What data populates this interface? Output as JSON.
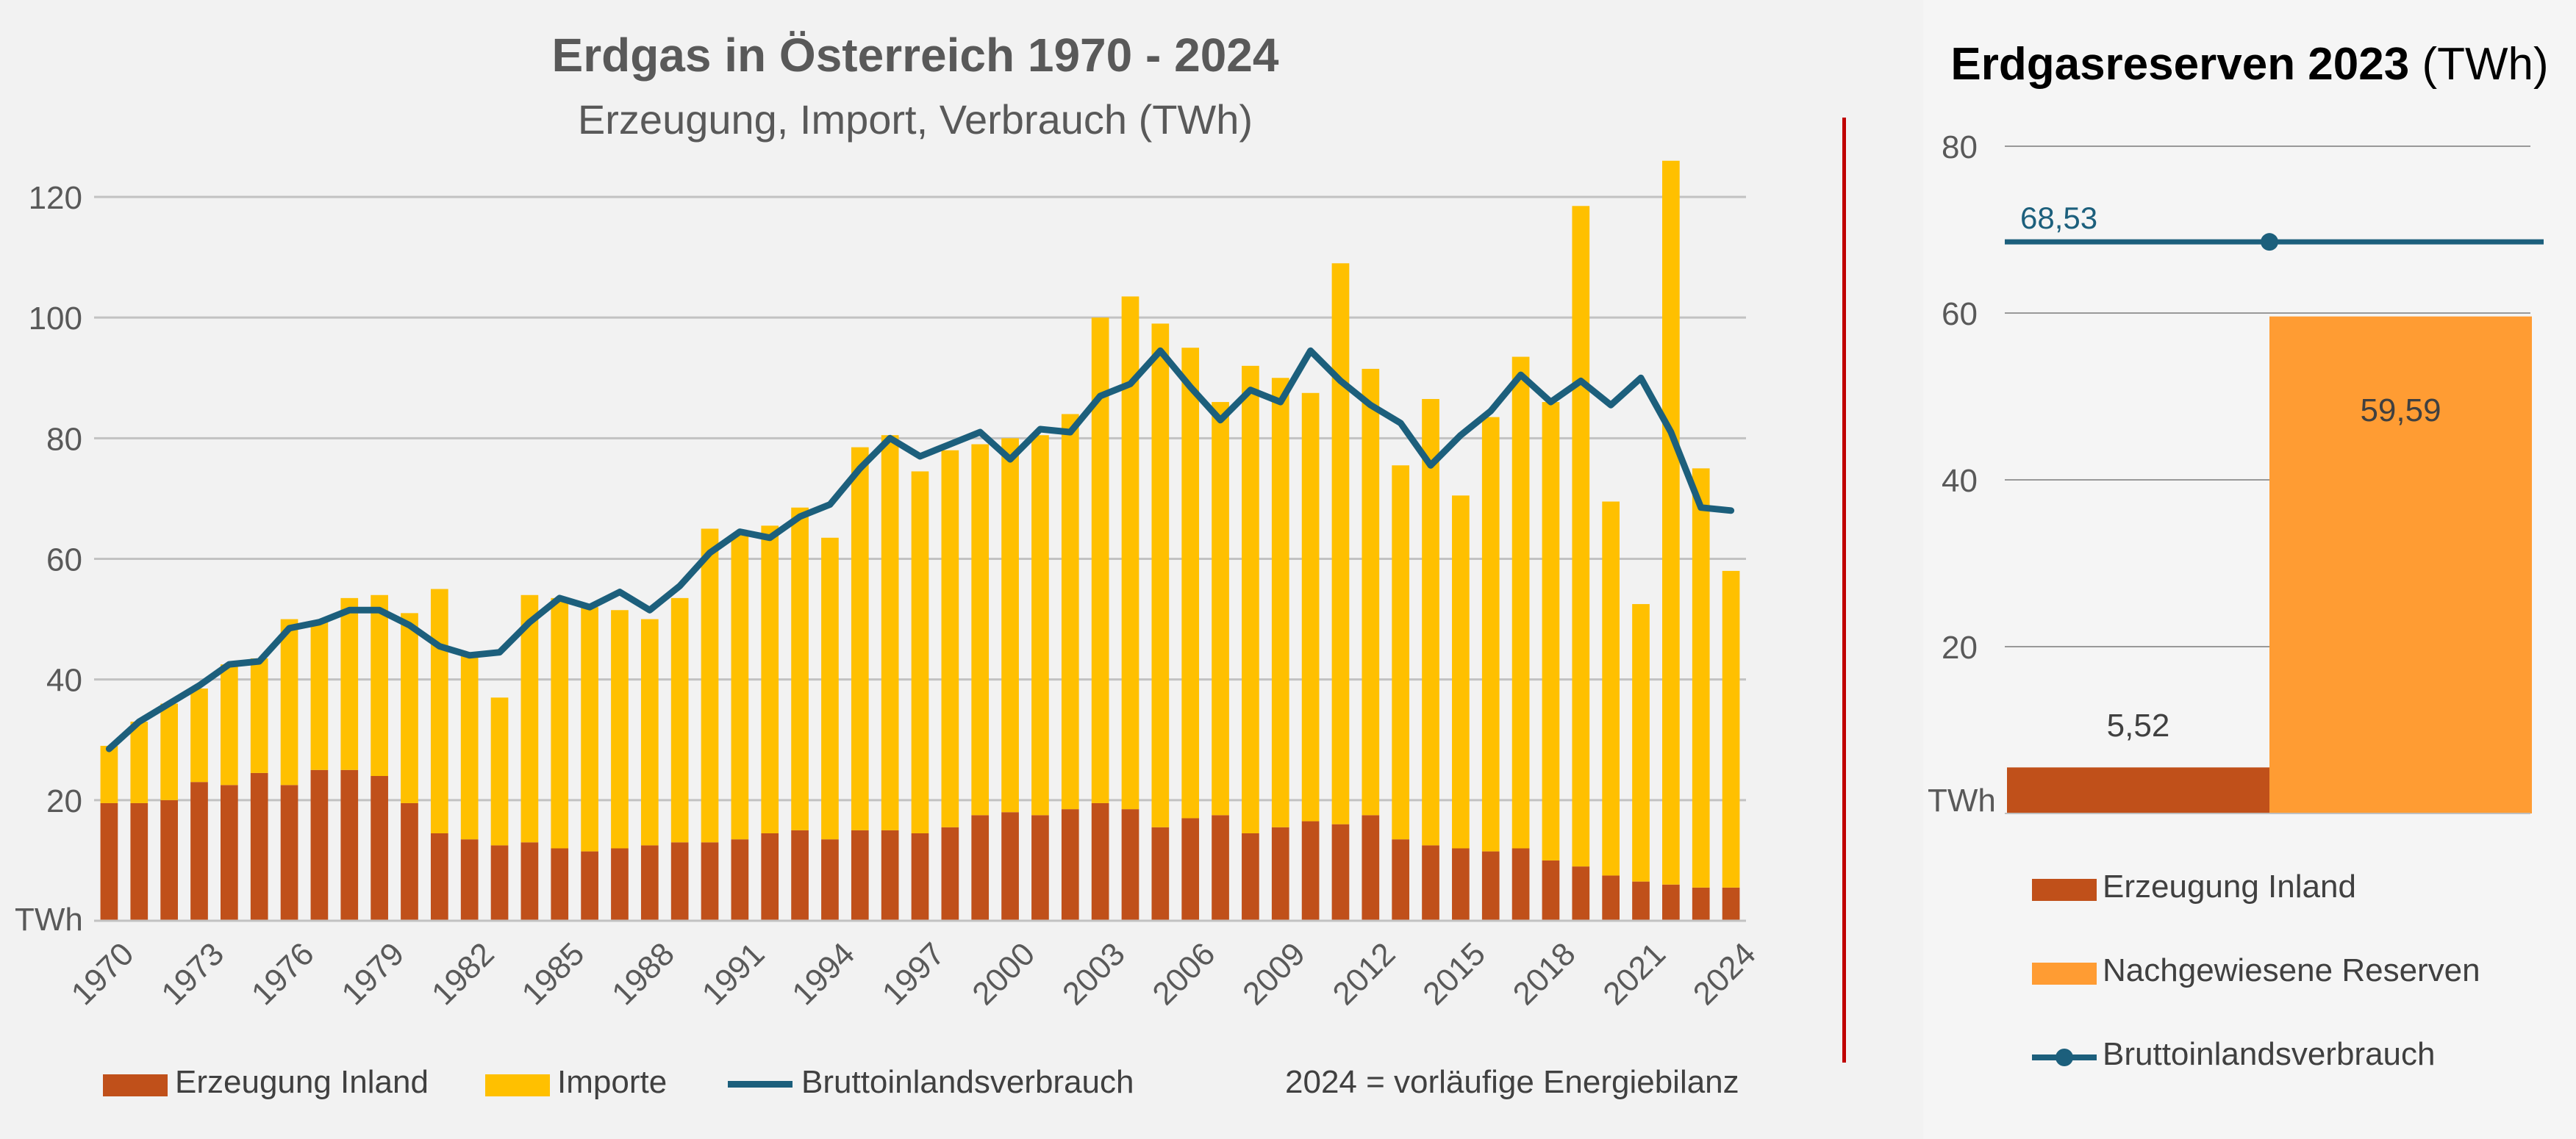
{
  "left": {
    "title": "Erdgas in Österreich 1970 - 2024",
    "subtitle": "Erzeugung, Import, Verbrauch (TWh)",
    "note": "2024 = vorläufige Energiebilanz",
    "legend": {
      "erzeugung": "Erzeugung Inland",
      "importe": "Importe",
      "verbrauch": "Bruttoinlandsverbrauch"
    }
  },
  "right": {
    "title_bold": "Erdgasreserven 2023",
    "title_unit": " (TWh)",
    "legend": {
      "erzeugung": "Erzeugung Inland",
      "reserven": "Nachgewiesene Reserven",
      "verbrauch": "Bruttoinlandsverbrauch"
    }
  },
  "colors": {
    "erzeugung": "#c0501a",
    "importe": "#ffc000",
    "verbrauch": "#1c5f7c",
    "reserven": "#ff9c33",
    "divider": "#c00000"
  },
  "chart_data": [
    {
      "type": "bar",
      "title": "Erdgas in Österreich 1970 - 2024",
      "subtitle": "Erzeugung, Import, Verbrauch (TWh)",
      "ylabel": "TWh",
      "ylim": [
        0,
        120
      ],
      "yticks": [
        20,
        40,
        60,
        80,
        100,
        120
      ],
      "x_tick_labels": [
        "1970",
        "1973",
        "1976",
        "1979",
        "1982",
        "1985",
        "1988",
        "1991",
        "1994",
        "1997",
        "2000",
        "2003",
        "2006",
        "2009",
        "2012",
        "2015",
        "2018",
        "2021",
        "2024"
      ],
      "categories": [
        1970,
        1971,
        1972,
        1973,
        1974,
        1975,
        1976,
        1977,
        1978,
        1979,
        1980,
        1981,
        1982,
        1983,
        1984,
        1985,
        1986,
        1987,
        1988,
        1989,
        1990,
        1991,
        1992,
        1993,
        1994,
        1995,
        1996,
        1997,
        1998,
        1999,
        2000,
        2001,
        2002,
        2003,
        2004,
        2005,
        2006,
        2007,
        2008,
        2009,
        2010,
        2011,
        2012,
        2013,
        2014,
        2015,
        2016,
        2017,
        2018,
        2019,
        2020,
        2021,
        2022,
        2023,
        2024
      ],
      "series": [
        {
          "name": "Erzeugung Inland",
          "kind": "stacked-bar",
          "values": [
            19.5,
            19.5,
            20,
            23,
            22.5,
            24.5,
            22.5,
            25,
            25,
            24,
            19.5,
            14.5,
            13.5,
            12.5,
            13,
            12,
            11.5,
            12,
            12.5,
            13,
            13,
            13.5,
            14.5,
            15,
            13.5,
            15,
            15,
            14.5,
            15.5,
            17.5,
            18,
            17.5,
            18.5,
            19.5,
            18.5,
            15.5,
            17,
            17.5,
            14.5,
            15.5,
            16.5,
            16,
            17.5,
            13.5,
            12.5,
            12,
            11.5,
            12,
            10,
            9,
            7.5,
            6.5,
            6,
            5.5,
            5.5
          ]
        },
        {
          "name": "Importe",
          "kind": "stacked-bar",
          "values": [
            9.5,
            13.5,
            16,
            15.5,
            20,
            19,
            27.5,
            24.5,
            28.5,
            30,
            31.5,
            40.5,
            30.5,
            24.5,
            41,
            41.5,
            40.5,
            39.5,
            37.5,
            40.5,
            52,
            50.5,
            51,
            53.5,
            50,
            63.5,
            65.5,
            60,
            62.5,
            61.5,
            62,
            63,
            65.5,
            80.5,
            85,
            83.5,
            78,
            68.5,
            77.5,
            74.5,
            71,
            93,
            74,
            62,
            74,
            58.5,
            72,
            81.5,
            76,
            109.5,
            62,
            46,
            120,
            69.5,
            52.5
          ]
        },
        {
          "name": "Bruttoinlandsverbrauch",
          "kind": "line",
          "values": [
            28.5,
            33,
            36,
            39,
            42.5,
            43,
            48.5,
            49.5,
            51.5,
            51.5,
            49,
            45.5,
            44,
            44.5,
            49.5,
            53.5,
            52,
            54.5,
            51.5,
            55.5,
            61,
            64.5,
            63.5,
            67,
            69,
            75,
            80,
            77,
            79,
            81,
            76.5,
            81.5,
            81,
            87,
            89,
            94.5,
            88.5,
            83,
            88,
            86,
            94.5,
            89.5,
            85.5,
            82.5,
            75.5,
            80.5,
            84.5,
            90.5,
            86,
            89.5,
            85.5,
            90,
            81,
            68.5,
            68
          ]
        }
      ],
      "legend_position": "bottom",
      "annotation": "2024 = vorläufige Energiebilanz"
    },
    {
      "type": "bar",
      "title": "Erdgasreserven 2023 (TWh)",
      "ylabel": "TWh",
      "ylim": [
        0,
        80
      ],
      "yticks": [
        20,
        40,
        60,
        80
      ],
      "categories": [
        "Erzeugung Inland",
        "Nachgewiesene Reserven"
      ],
      "values": [
        5.52,
        59.59
      ],
      "value_labels": [
        "5,52",
        "59,59"
      ],
      "reference_line": {
        "name": "Bruttoinlandsverbrauch",
        "value": 68.53,
        "label": "68,53"
      },
      "legend_position": "bottom"
    }
  ]
}
